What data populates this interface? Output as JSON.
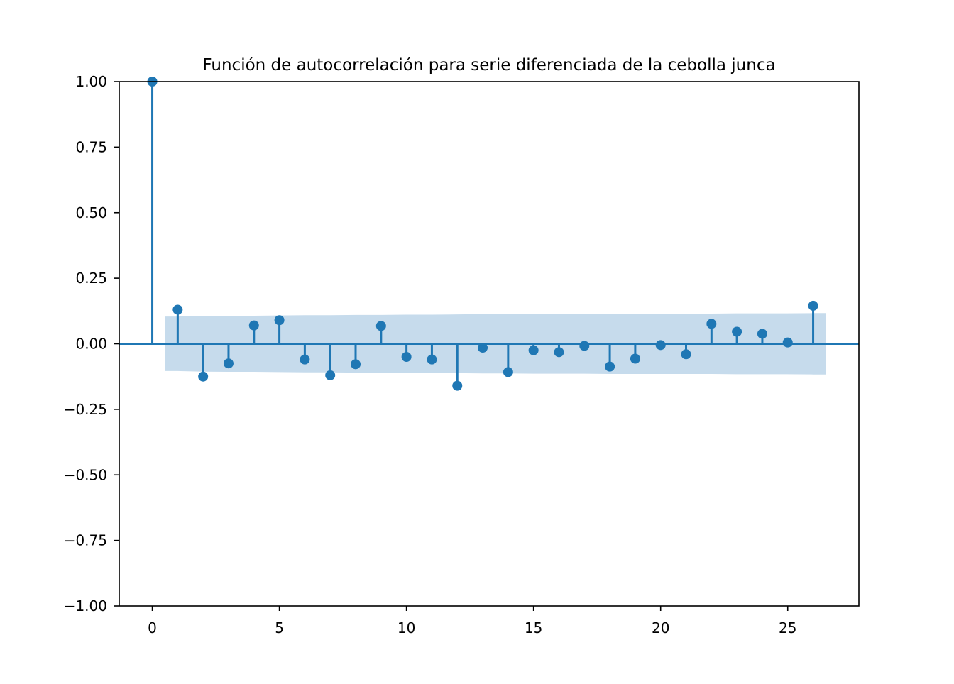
{
  "chart_data": {
    "type": "stem",
    "title": "Función de autocorrelación para serie diferenciada de la cebolla junca",
    "xlabel": "",
    "ylabel": "",
    "xlim": [
      -1.3,
      27.8
    ],
    "ylim": [
      -1.0,
      1.0
    ],
    "x_ticks": [
      0,
      5,
      10,
      15,
      20,
      25
    ],
    "x_tick_labels": [
      "0",
      "5",
      "10",
      "15",
      "20",
      "25"
    ],
    "y_ticks": [
      1.0,
      0.75,
      0.5,
      0.25,
      0.0,
      -0.25,
      -0.5,
      -0.75,
      -1.0
    ],
    "y_tick_labels": [
      "1.00",
      "0.75",
      "0.50",
      "0.25",
      "0.00",
      "−0.25",
      "−0.50",
      "−0.75",
      "−1.00"
    ],
    "grid": false,
    "colors": {
      "stem": "#1f77b4",
      "confidence_band": "#c6dbec",
      "axes": "#000000"
    },
    "lags": [
      0,
      1,
      2,
      3,
      4,
      5,
      6,
      7,
      8,
      9,
      10,
      11,
      12,
      13,
      14,
      15,
      16,
      17,
      18,
      19,
      20,
      21,
      22,
      23,
      24,
      25,
      26
    ],
    "acf": [
      1.0,
      0.13,
      -0.125,
      -0.075,
      0.07,
      0.09,
      -0.06,
      -0.12,
      -0.078,
      0.068,
      -0.05,
      -0.06,
      -0.16,
      -0.015,
      -0.108,
      -0.025,
      -0.032,
      -0.008,
      -0.087,
      -0.057,
      -0.005,
      -0.04,
      0.076,
      0.046,
      0.038,
      0.005,
      0.145
    ],
    "confidence_band": {
      "x": [
        0.5,
        1,
        2,
        3,
        4,
        5,
        6,
        7,
        8,
        9,
        10,
        11,
        12,
        13,
        14,
        15,
        16,
        17,
        18,
        19,
        20,
        21,
        22,
        23,
        24,
        25,
        26,
        26.5
      ],
      "upper": [
        0.104,
        0.104,
        0.106,
        0.107,
        0.107,
        0.108,
        0.109,
        0.109,
        0.11,
        0.11,
        0.111,
        0.111,
        0.112,
        0.113,
        0.113,
        0.114,
        0.114,
        0.114,
        0.115,
        0.115,
        0.115,
        0.115,
        0.115,
        0.116,
        0.116,
        0.116,
        0.117,
        0.117
      ],
      "lower": [
        -0.104,
        -0.104,
        -0.106,
        -0.107,
        -0.107,
        -0.108,
        -0.109,
        -0.109,
        -0.11,
        -0.11,
        -0.111,
        -0.111,
        -0.112,
        -0.113,
        -0.113,
        -0.114,
        -0.114,
        -0.114,
        -0.115,
        -0.115,
        -0.115,
        -0.115,
        -0.115,
        -0.116,
        -0.116,
        -0.116,
        -0.117,
        -0.117
      ]
    }
  }
}
